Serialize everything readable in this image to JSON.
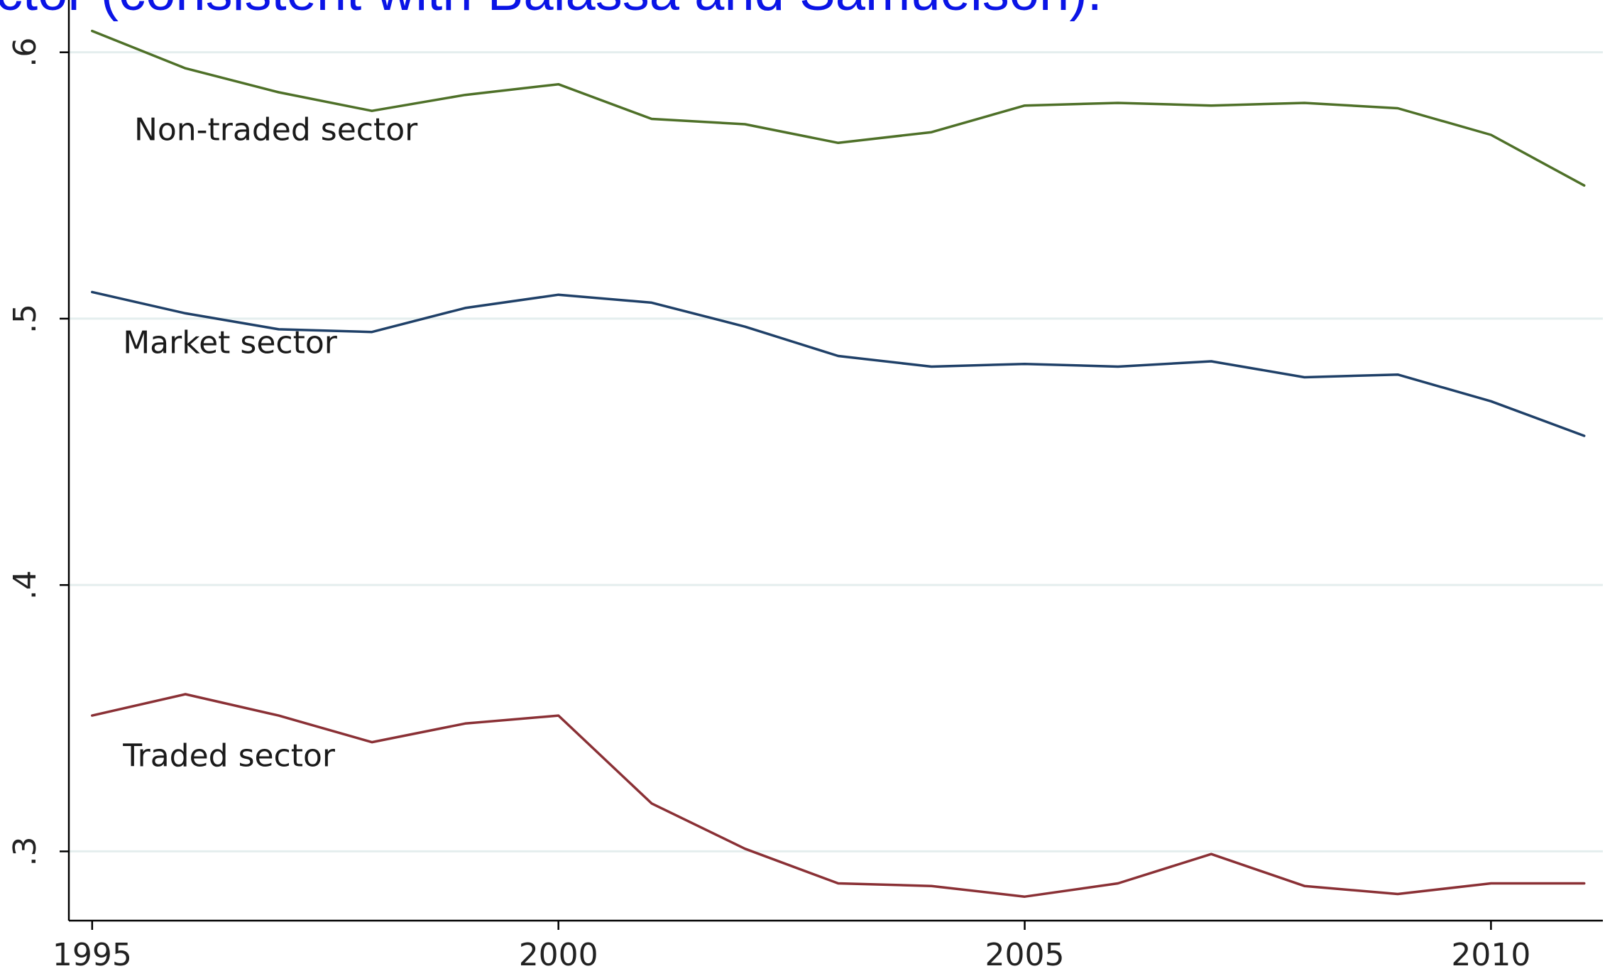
{
  "title": "ctor (consistent with Balassa and Samuelson).",
  "chart_data": {
    "type": "line",
    "title": "ctor (consistent with Balassa and Samuelson).",
    "xlabel": "",
    "ylabel": "",
    "xlim": [
      1994.75,
      2011.2
    ],
    "ylim": [
      0.274,
      0.6175
    ],
    "x_ticks": [
      1995,
      2000,
      2005,
      2010
    ],
    "x_tick_labels": [
      "1995",
      "2000",
      "2005",
      "2010"
    ],
    "y_ticks": [
      0.3,
      0.4,
      0.5,
      0.6
    ],
    "y_tick_labels": [
      ".3",
      ".4",
      ".5",
      ".6"
    ],
    "grid": true,
    "legend": "none",
    "x": [
      1995,
      1996,
      1997,
      1998,
      1999,
      2000,
      2001,
      2002,
      2003,
      2004,
      2005,
      2006,
      2007,
      2008,
      2009,
      2010,
      2011
    ],
    "series": [
      {
        "name": "Non-traded sector",
        "color": "#4e7028",
        "label_at": [
          1995.45,
          0.567
        ],
        "values": [
          0.608,
          0.594,
          0.585,
          0.578,
          0.584,
          0.588,
          0.575,
          0.573,
          0.566,
          0.57,
          0.58,
          0.581,
          0.58,
          0.581,
          0.579,
          0.569,
          0.55
        ]
      },
      {
        "name": "Market sector",
        "color": "#1f4068",
        "label_at": [
          1995.33,
          0.487
        ],
        "values": [
          0.51,
          0.502,
          0.496,
          0.495,
          0.504,
          0.509,
          0.506,
          0.497,
          0.486,
          0.482,
          0.483,
          0.482,
          0.484,
          0.478,
          0.479,
          0.469,
          0.456
        ]
      },
      {
        "name": "Traded sector",
        "color": "#8a3035",
        "label_at": [
          1995.33,
          0.332
        ],
        "values": [
          0.351,
          0.359,
          0.351,
          0.341,
          0.348,
          0.351,
          0.318,
          0.301,
          0.288,
          0.287,
          0.283,
          0.288,
          0.299,
          0.287,
          0.284,
          0.288,
          0.288
        ]
      }
    ]
  }
}
